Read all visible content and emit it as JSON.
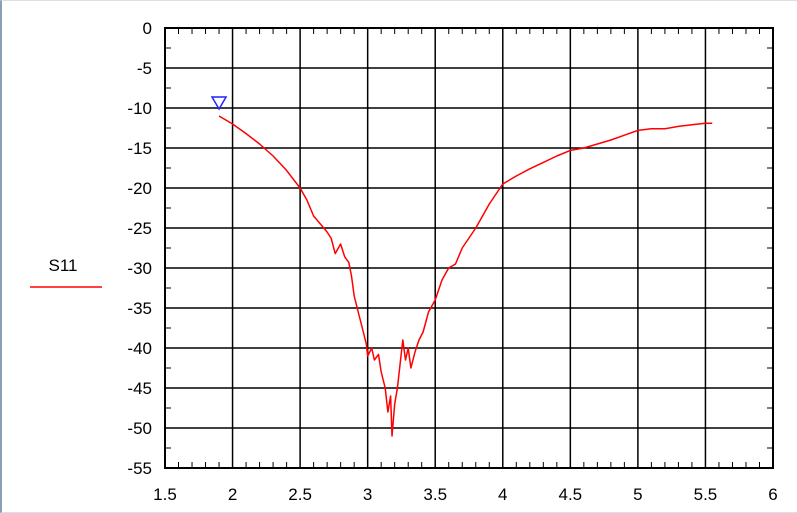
{
  "chart_data": {
    "type": "line",
    "title": "",
    "xlabel": "",
    "ylabel": "",
    "xlim": [
      1.5,
      6
    ],
    "ylim": [
      -55,
      0
    ],
    "grid": true,
    "legend_placement": "left",
    "x_ticks": [
      1.5,
      2,
      2.5,
      3,
      3.5,
      4,
      4.5,
      5,
      5.5,
      6
    ],
    "x_tick_labels": [
      "1.5",
      "2",
      "2.5",
      "3",
      "3.5",
      "4",
      "4.5",
      "5",
      "5.5",
      "6"
    ],
    "y_ticks": [
      0,
      -5,
      -10,
      -15,
      -20,
      -25,
      -30,
      -35,
      -40,
      -45,
      -50,
      -55
    ],
    "y_tick_labels": [
      "0",
      "-5",
      "-10",
      "-15",
      "-20",
      "-25",
      "-30",
      "-35",
      "-40",
      "-45",
      "-50",
      "-55"
    ],
    "marker": {
      "shape": "triangle-down",
      "color": "#2222ff",
      "x": 1.9,
      "y": -9.5
    },
    "series": [
      {
        "name": "S11",
        "color": "#ff0000",
        "points": [
          [
            1.9,
            -11.0
          ],
          [
            2.0,
            -12.0
          ],
          [
            2.1,
            -13.2
          ],
          [
            2.2,
            -14.5
          ],
          [
            2.3,
            -16.0
          ],
          [
            2.4,
            -17.8
          ],
          [
            2.5,
            -20.0
          ],
          [
            2.55,
            -21.5
          ],
          [
            2.6,
            -23.5
          ],
          [
            2.65,
            -24.5
          ],
          [
            2.7,
            -25.5
          ],
          [
            2.73,
            -26.3
          ],
          [
            2.76,
            -28.2
          ],
          [
            2.8,
            -27.0
          ],
          [
            2.83,
            -28.6
          ],
          [
            2.86,
            -29.3
          ],
          [
            2.88,
            -31.0
          ],
          [
            2.9,
            -33.5
          ],
          [
            2.93,
            -35.5
          ],
          [
            2.96,
            -37.5
          ],
          [
            2.99,
            -39.5
          ],
          [
            3.0,
            -41.0
          ],
          [
            3.03,
            -40.0
          ],
          [
            3.05,
            -41.5
          ],
          [
            3.08,
            -40.8
          ],
          [
            3.1,
            -43.0
          ],
          [
            3.13,
            -45.0
          ],
          [
            3.15,
            -48.0
          ],
          [
            3.17,
            -46.0
          ],
          [
            3.18,
            -51.0
          ],
          [
            3.2,
            -47.0
          ],
          [
            3.22,
            -45.0
          ],
          [
            3.24,
            -42.0
          ],
          [
            3.26,
            -39.0
          ],
          [
            3.28,
            -41.5
          ],
          [
            3.3,
            -40.0
          ],
          [
            3.32,
            -42.5
          ],
          [
            3.35,
            -40.5
          ],
          [
            3.38,
            -39.0
          ],
          [
            3.41,
            -38.0
          ],
          [
            3.45,
            -35.5
          ],
          [
            3.5,
            -34.0
          ],
          [
            3.55,
            -31.5
          ],
          [
            3.6,
            -30.0
          ],
          [
            3.65,
            -29.5
          ],
          [
            3.7,
            -27.5
          ],
          [
            3.8,
            -25.0
          ],
          [
            3.9,
            -22.0
          ],
          [
            4.0,
            -19.5
          ],
          [
            4.1,
            -18.5
          ],
          [
            4.2,
            -17.6
          ],
          [
            4.3,
            -16.8
          ],
          [
            4.4,
            -16.0
          ],
          [
            4.5,
            -15.3
          ],
          [
            4.6,
            -15.0
          ],
          [
            4.7,
            -14.5
          ],
          [
            4.8,
            -14.0
          ],
          [
            4.9,
            -13.4
          ],
          [
            5.0,
            -12.8
          ],
          [
            5.1,
            -12.6
          ],
          [
            5.2,
            -12.6
          ],
          [
            5.3,
            -12.3
          ],
          [
            5.4,
            -12.1
          ],
          [
            5.5,
            -11.9
          ],
          [
            5.55,
            -11.9
          ]
        ]
      }
    ]
  }
}
